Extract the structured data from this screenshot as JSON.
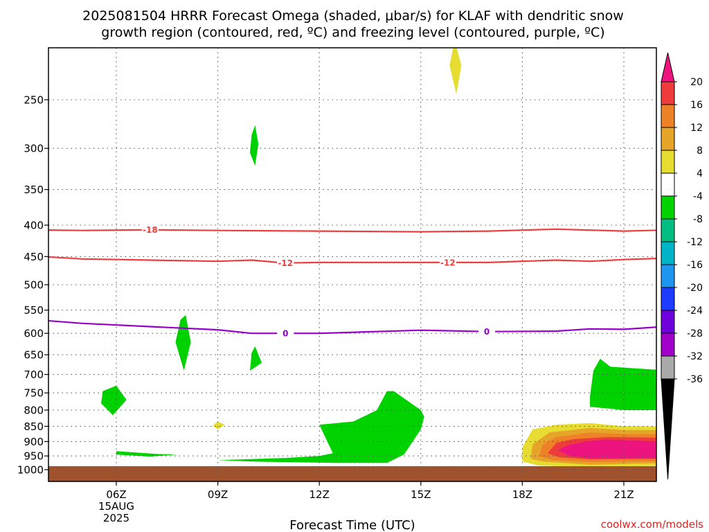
{
  "header": {
    "title_line1": "2025081504 HRRR Forecast Omega (shaded, μbar/s) for KLAF with dendritic snow",
    "title_line2": "growth region (contoured, red, ºC) and freezing level (contoured, purple, ºC)"
  },
  "chart_data": {
    "type": "heatmap",
    "xlabel": "Forecast Time (UTC)",
    "ylabel": "",
    "x_hours_range": [
      3.2,
      22.6
    ],
    "y_pressure_range_hPa": [
      1030,
      200
    ],
    "y_ticks_hPa": [
      250,
      300,
      350,
      400,
      450,
      500,
      550,
      600,
      650,
      700,
      750,
      800,
      850,
      900,
      950,
      1000
    ],
    "x_ticks": [
      {
        "hour": 6,
        "label": "06Z"
      },
      {
        "hour": 9,
        "label": "09Z"
      },
      {
        "hour": 12,
        "label": "12Z"
      },
      {
        "hour": 15,
        "label": "15Z"
      },
      {
        "hour": 18,
        "label": "18Z"
      },
      {
        "hour": 21,
        "label": "21Z"
      }
    ],
    "date_label": {
      "hour": 6,
      "day": "15AUG",
      "year": "2025"
    },
    "grid": true,
    "ground_level_hPa": 987,
    "ground_color": "#A0522D",
    "colorbar": {
      "position": "right",
      "ticks": [
        "20",
        "16",
        "12",
        "8",
        "4",
        "-4",
        "-8",
        "-12",
        "-16",
        "-20",
        "-24",
        "-28",
        "-32",
        "-36"
      ],
      "colors": [
        "#EE1480",
        "#EE3C3C",
        "#EE8228",
        "#E6A528",
        "#E6DC32",
        "#FFFFFF",
        "#00D200",
        "#00BE82",
        "#00B4C8",
        "#1E96F0",
        "#1E3CFF",
        "#6E00DC",
        "#A000C8",
        "#AAAAAA",
        "#000000"
      ]
    },
    "omega_regions": [
      {
        "level": "4 to 8",
        "color": "#E6DC32",
        "points": [
          [
            15.85,
            220
          ],
          [
            16.0,
            200
          ],
          [
            16.2,
            220
          ],
          [
            16.05,
            245
          ]
        ]
      },
      {
        "level": "-4 to -8",
        "color": "#00D200",
        "points": [
          [
            10.0,
            285
          ],
          [
            9.95,
            305
          ],
          [
            10.1,
            320
          ],
          [
            10.2,
            295
          ],
          [
            10.1,
            275
          ]
        ]
      },
      {
        "level": "-4 to -8",
        "color": "#00D200",
        "points": [
          [
            7.9,
            570
          ],
          [
            7.75,
            620
          ],
          [
            8.0,
            690
          ],
          [
            8.2,
            620
          ],
          [
            8.05,
            560
          ]
        ]
      },
      {
        "level": "-4 to -8",
        "color": "#00D200",
        "points": [
          [
            10.0,
            645
          ],
          [
            9.95,
            690
          ],
          [
            10.3,
            670
          ],
          [
            10.1,
            630
          ]
        ]
      },
      {
        "level": "-4 to -8",
        "color": "#00D200",
        "points": [
          [
            5.6,
            745
          ],
          [
            5.55,
            780
          ],
          [
            5.9,
            815
          ],
          [
            6.3,
            770
          ],
          [
            6.0,
            730
          ]
        ]
      },
      {
        "level": "-4 to -8",
        "color": "#00D200",
        "points": [
          [
            6.0,
            933
          ],
          [
            7.2,
            943
          ],
          [
            7.8,
            945
          ],
          [
            7.0,
            952
          ],
          [
            6.0,
            945
          ]
        ]
      },
      {
        "level": "-4 to -8",
        "color": "#00D200",
        "points": [
          [
            9.0,
            965
          ],
          [
            11.0,
            957
          ],
          [
            12.0,
            950
          ],
          [
            12.4,
            940
          ],
          [
            12.0,
            845
          ],
          [
            13.0,
            835
          ],
          [
            13.3,
            820
          ],
          [
            13.7,
            800
          ],
          [
            14.0,
            745
          ],
          [
            14.2,
            745
          ],
          [
            15.0,
            800
          ],
          [
            15.1,
            820
          ],
          [
            15.0,
            860
          ],
          [
            14.5,
            945
          ],
          [
            14.0,
            975
          ],
          [
            12.5,
            975
          ],
          [
            10.0,
            970
          ]
        ]
      },
      {
        "level": "-4 to -8",
        "color": "#00D200",
        "points": [
          [
            20.0,
            760
          ],
          [
            20.1,
            690
          ],
          [
            20.3,
            660
          ],
          [
            20.6,
            680
          ],
          [
            22.4,
            690
          ],
          [
            22.6,
            690
          ],
          [
            22.6,
            800
          ],
          [
            21.0,
            800
          ],
          [
            20.0,
            790
          ]
        ]
      },
      {
        "level": "4 to 8",
        "color": "#E6DC32",
        "points": [
          [
            9.0,
            860
          ],
          [
            9.2,
            845
          ],
          [
            9.0,
            835
          ],
          [
            8.85,
            848
          ]
        ]
      },
      {
        "level": "4 to 8",
        "color": "#E6DC32",
        "points": [
          [
            18.0,
            970
          ],
          [
            18.0,
            920
          ],
          [
            18.3,
            860
          ],
          [
            19.0,
            845
          ],
          [
            20.0,
            840
          ],
          [
            21.0,
            850
          ],
          [
            22.6,
            850
          ],
          [
            22.6,
            985
          ],
          [
            20.0,
            990
          ],
          [
            18.5,
            985
          ]
        ]
      },
      {
        "level": "8 to 12",
        "color": "#E6A528",
        "points": [
          [
            18.25,
            960
          ],
          [
            18.3,
            910
          ],
          [
            18.8,
            870
          ],
          [
            20.0,
            855
          ],
          [
            21.0,
            862
          ],
          [
            22.6,
            862
          ],
          [
            22.6,
            975
          ],
          [
            20.0,
            982
          ],
          [
            18.6,
            970
          ]
        ]
      },
      {
        "level": "12 to 16",
        "color": "#EE8228",
        "points": [
          [
            18.5,
            950
          ],
          [
            18.6,
            910
          ],
          [
            19.0,
            885
          ],
          [
            20.0,
            870
          ],
          [
            21.0,
            875
          ],
          [
            22.6,
            875
          ],
          [
            22.6,
            968
          ],
          [
            20.0,
            972
          ],
          [
            18.9,
            965
          ]
        ]
      },
      {
        "level": "16 to 20",
        "color": "#EE3C3C",
        "points": [
          [
            18.75,
            940
          ],
          [
            19.0,
            905
          ],
          [
            19.5,
            892
          ],
          [
            20.5,
            885
          ],
          [
            22.6,
            888
          ],
          [
            22.6,
            960
          ],
          [
            20.0,
            962
          ],
          [
            19.1,
            955
          ]
        ]
      },
      {
        "level": "> 20",
        "color": "#EE1480",
        "points": [
          [
            19.05,
            930
          ],
          [
            19.4,
            910
          ],
          [
            20.0,
            898
          ],
          [
            20.5,
            893
          ],
          [
            22.6,
            903
          ],
          [
            22.6,
            958
          ],
          [
            20.0,
            958
          ],
          [
            19.4,
            950
          ]
        ]
      }
    ],
    "temperature_contours": [
      {
        "value": -18,
        "label": "-18",
        "color": "#EE3C3C",
        "label_hour": 7.0,
        "points": [
          [
            3.2,
            407
          ],
          [
            5.0,
            408
          ],
          [
            7.0,
            407
          ],
          [
            9.0,
            408
          ],
          [
            12.0,
            409
          ],
          [
            15.0,
            410
          ],
          [
            17.0,
            409
          ],
          [
            19.0,
            406
          ],
          [
            21.0,
            409
          ],
          [
            22.6,
            407
          ]
        ]
      },
      {
        "value": -12,
        "label": "-12",
        "color": "#EE3C3C",
        "label_hour": 11.0,
        "label_hour_2": 15.8,
        "points": [
          [
            3.2,
            448
          ],
          [
            5.0,
            454
          ],
          [
            7.0,
            456
          ],
          [
            9.0,
            458
          ],
          [
            10.0,
            456
          ],
          [
            11.0,
            461
          ],
          [
            12.0,
            460
          ],
          [
            15.0,
            460
          ],
          [
            17.0,
            460
          ],
          [
            19.0,
            456
          ],
          [
            20.0,
            458
          ],
          [
            21.0,
            455
          ],
          [
            22.6,
            452
          ]
        ]
      },
      {
        "value": 0,
        "label": "0",
        "color": "#9600C8",
        "label_hour": 11.0,
        "label_hour_2": 16.95,
        "points": [
          [
            3.2,
            568
          ],
          [
            5.0,
            578
          ],
          [
            7.0,
            585
          ],
          [
            9.0,
            592
          ],
          [
            10.0,
            600
          ],
          [
            11.0,
            600
          ],
          [
            12.0,
            600
          ],
          [
            15.0,
            593
          ],
          [
            17.0,
            596
          ],
          [
            19.0,
            595
          ],
          [
            20.0,
            590
          ],
          [
            21.0,
            591
          ],
          [
            22.6,
            583
          ]
        ]
      }
    ]
  },
  "footer": {
    "credit": "coolwx.com/models"
  }
}
